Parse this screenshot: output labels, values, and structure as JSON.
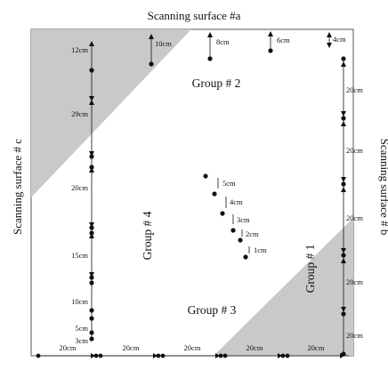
{
  "surfaces": {
    "top": "Scanning surface #a",
    "left": "Scanning surface # c",
    "right": "Scanning surface # b"
  },
  "groups": {
    "g1": "Group # 1",
    "g2": "Group # 2",
    "g3": "Group # 3",
    "g4": "Group # 4"
  },
  "top_spacings": [
    "10cm",
    "8cm",
    "6cm",
    "4cm"
  ],
  "left_spacings": [
    "12cm",
    "29cm",
    "20cm",
    "15cm",
    "10cm",
    "5cm",
    "3cm"
  ],
  "right_spacings": [
    "20cm",
    "20cm",
    "20cm",
    "20cm",
    "20cm"
  ],
  "bottom_spacings": [
    "20cm",
    "20cm",
    "20cm",
    "20cm",
    "20cm"
  ],
  "center_spacings": [
    "5cm",
    "4cm",
    "3cm",
    "2cm",
    "1cm"
  ],
  "colors": {
    "shade": "#c9c9c9",
    "ink": "#111111",
    "frame": "#555555"
  }
}
